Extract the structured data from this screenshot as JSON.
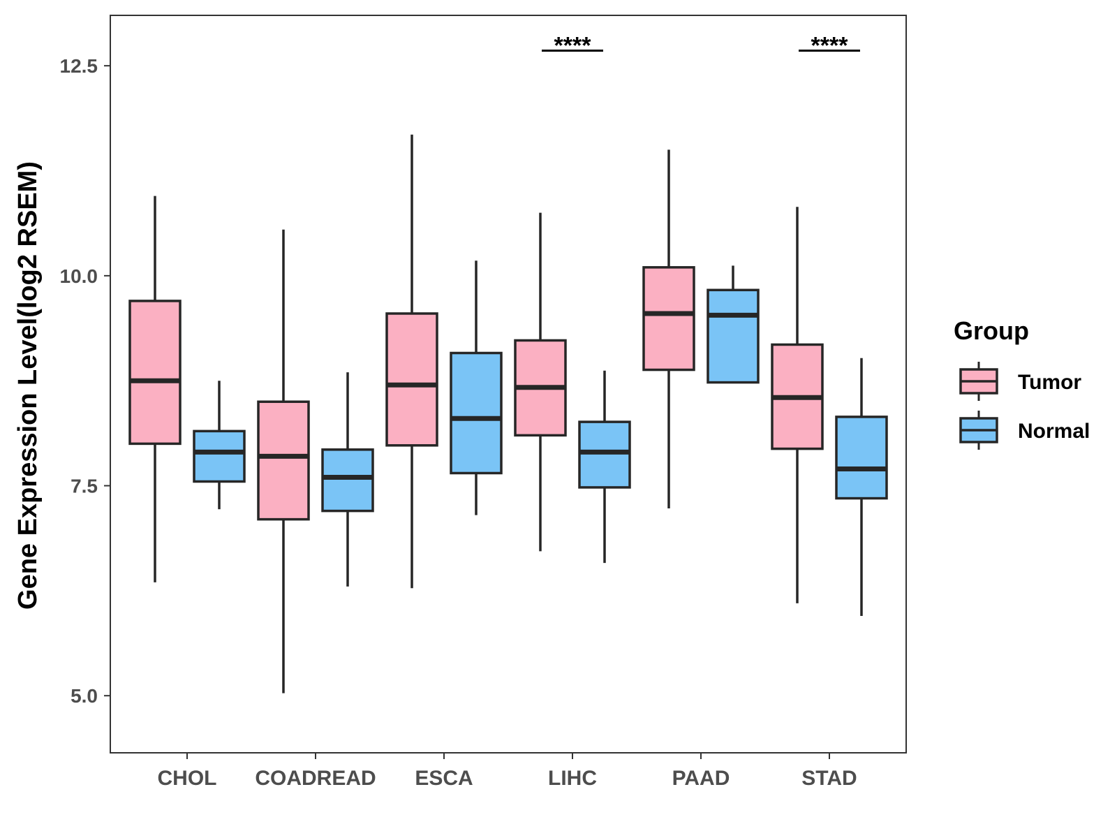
{
  "chart_data": {
    "type": "boxplot",
    "title": "",
    "xlabel": "",
    "ylabel": "Gene Expression Level(log2 RSEM)",
    "ylim": [
      4.32,
      13.1
    ],
    "yticks": [
      5.0,
      7.5,
      10.0,
      12.5
    ],
    "ytick_labels": [
      "5.0",
      "7.5",
      "10.0",
      "12.5"
    ],
    "grid": false,
    "legend": {
      "title": "Group",
      "placement": "right",
      "entries": [
        {
          "name": "Tumor",
          "color": "#FBB0C2"
        },
        {
          "name": "Normal",
          "color": "#7AC4F6"
        }
      ]
    },
    "categories": [
      "CHOL",
      "COADREAD",
      "ESCA",
      "LIHC",
      "PAAD",
      "STAD"
    ],
    "series": [
      {
        "name": "Tumor",
        "color": "#FBB0C2",
        "boxes": [
          {
            "whisker_low": 6.35,
            "q1": 8.0,
            "median": 8.75,
            "q3": 9.7,
            "whisker_high": 10.95
          },
          {
            "whisker_low": 5.03,
            "q1": 7.1,
            "median": 7.85,
            "q3": 8.5,
            "whisker_high": 10.55
          },
          {
            "whisker_low": 6.28,
            "q1": 7.98,
            "median": 8.7,
            "q3": 9.55,
            "whisker_high": 11.68
          },
          {
            "whisker_low": 6.72,
            "q1": 8.1,
            "median": 8.67,
            "q3": 9.23,
            "whisker_high": 10.75
          },
          {
            "whisker_low": 7.23,
            "q1": 8.88,
            "median": 9.55,
            "q3": 10.1,
            "whisker_high": 11.5
          },
          {
            "whisker_low": 6.1,
            "q1": 7.94,
            "median": 8.55,
            "q3": 9.18,
            "whisker_high": 10.82
          }
        ]
      },
      {
        "name": "Normal",
        "color": "#7AC4F6",
        "boxes": [
          {
            "whisker_low": 7.22,
            "q1": 7.55,
            "median": 7.9,
            "q3": 8.15,
            "whisker_high": 8.75
          },
          {
            "whisker_low": 6.3,
            "q1": 7.2,
            "median": 7.6,
            "q3": 7.93,
            "whisker_high": 8.85
          },
          {
            "whisker_low": 7.15,
            "q1": 7.65,
            "median": 8.3,
            "q3": 9.08,
            "whisker_high": 10.18
          },
          {
            "whisker_low": 6.58,
            "q1": 7.48,
            "median": 7.9,
            "q3": 8.26,
            "whisker_high": 8.87
          },
          {
            "whisker_low": 8.73,
            "q1": 8.73,
            "median": 9.53,
            "q3": 9.83,
            "whisker_high": 10.12
          },
          {
            "whisker_low": 5.95,
            "q1": 7.35,
            "median": 7.7,
            "q3": 8.32,
            "whisker_high": 9.02
          }
        ]
      }
    ],
    "annotations": [
      {
        "category": "LIHC",
        "text": "****",
        "y": 12.68
      },
      {
        "category": "STAD",
        "text": "****",
        "y": 12.68
      }
    ]
  },
  "colors": {
    "tumor": "#FBB0C2",
    "normal": "#7AC4F6",
    "outline": "#262626",
    "axis": "#333333",
    "tick_text": "#4d4d4d"
  }
}
